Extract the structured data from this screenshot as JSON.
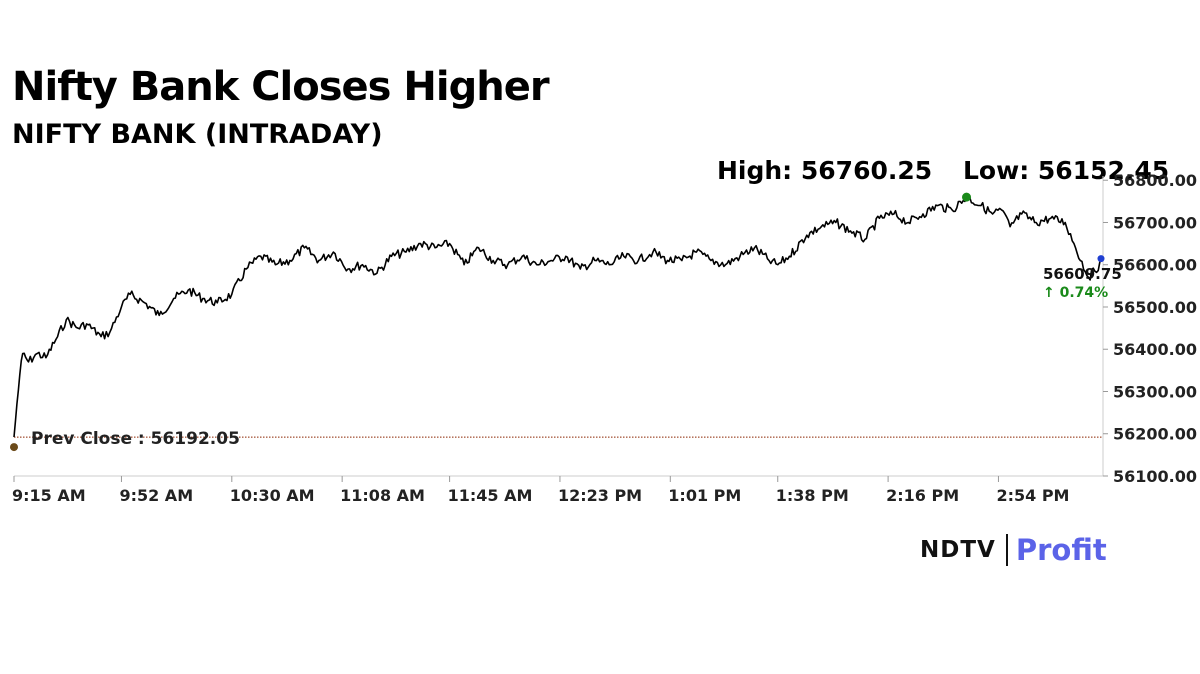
{
  "header": {
    "title": "Nifty Bank Closes Higher",
    "subtitle": "NIFTY BANK (INTRADAY)",
    "high_label": "High: 56760.25",
    "low_label": "Low: 56152.45"
  },
  "brand": {
    "ndtv": "NDTV",
    "profit": "Profit"
  },
  "chart_data": {
    "type": "line",
    "title": "NIFTY BANK (INTRADAY)",
    "xlabel": "",
    "ylabel": "",
    "x_ticks": [
      "9:15 AM",
      "9:52 AM",
      "10:30 AM",
      "11:08 AM",
      "11:45 AM",
      "12:23 PM",
      "1:01 PM",
      "1:38 PM",
      "2:16 PM",
      "2:54 PM"
    ],
    "y_ticks": [
      "56100.00",
      "56200.00",
      "56300.00",
      "56400.00",
      "56500.00",
      "56600.00",
      "56700.00",
      "56800.00"
    ],
    "ylim": [
      56100,
      56810
    ],
    "xlim_minutes": [
      555,
      930
    ],
    "grid": false,
    "prev_close": 56192.05,
    "prev_close_label": "Prev Close : 56192.05",
    "last_value_label": "56609.75",
    "change_label": "↑ 0.74%",
    "colors": {
      "line": "#000000",
      "prev_close_line": "#8b2500",
      "high_marker": "#1a8a1a",
      "start_marker": "#6b4a1a",
      "last_marker": "#1f3fd1",
      "change": "#1a8a1a"
    },
    "series": [
      {
        "x": [
          "9:15 AM",
          "9:16 AM",
          "9:17 AM",
          "9:18 AM",
          "9:20 AM",
          "9:23 AM",
          "9:26 AM",
          "9:30 AM",
          "9:33 AM",
          "9:37 AM",
          "9:40 AM",
          "9:45 AM",
          "9:48 AM",
          "9:52 AM",
          "9:55 AM",
          "10:00 AM",
          "10:05 AM",
          "10:10 AM",
          "10:15 AM",
          "10:20 AM",
          "10:25 AM",
          "10:30 AM",
          "10:35 AM",
          "10:40 AM",
          "10:45 AM",
          "10:50 AM",
          "10:55 AM",
          "11:00 AM",
          "11:05 AM",
          "11:10 AM",
          "11:15 AM",
          "11:20 AM",
          "11:25 AM",
          "11:30 AM",
          "11:35 AM",
          "11:40 AM",
          "11:45 AM",
          "11:50 AM",
          "11:55 AM",
          "12:00 PM",
          "12:05 PM",
          "12:10 PM",
          "12:15 PM",
          "12:20 PM",
          "12:25 PM",
          "12:30 PM",
          "12:35 PM",
          "12:40 PM",
          "12:45 PM",
          "12:50 PM",
          "12:55 PM",
          "1:00 PM",
          "1:05 PM",
          "1:10 PM",
          "1:15 PM",
          "1:20 PM",
          "1:25 PM",
          "1:30 PM",
          "1:35 PM",
          "1:38 PM",
          "1:42 PM",
          "1:48 PM",
          "1:53 PM",
          "1:58 PM",
          "2:03 PM",
          "2:08 PM",
          "2:13 PM",
          "2:18 PM",
          "2:23 PM",
          "2:28 PM",
          "2:33 PM",
          "2:38 PM",
          "2:43 PM",
          "2:48 PM",
          "2:52 PM",
          "2:55 PM",
          "2:58 PM",
          "3:02 PM",
          "3:07 PM",
          "3:12 PM",
          "3:17 PM",
          "3:20 PM",
          "3:25 PM",
          "3:30 PM"
        ],
        "y": [
          56192.05,
          56270,
          56340,
          56390,
          56370,
          56390,
          56380,
          56430,
          56470,
          56450,
          56460,
          56430,
          56440,
          56500,
          56530,
          56510,
          56480,
          56520,
          56540,
          56520,
          56510,
          56530,
          56590,
          56620,
          56600,
          56610,
          56640,
          56610,
          56630,
          56590,
          56600,
          56580,
          56620,
          56630,
          56650,
          56640,
          56650,
          56600,
          56640,
          56610,
          56600,
          56620,
          56600,
          56610,
          56620,
          56590,
          56610,
          56600,
          56620,
          56610,
          56630,
          56610,
          56610,
          56630,
          56610,
          56600,
          56620,
          56640,
          56610,
          56600,
          56620,
          56670,
          56690,
          56700,
          56680,
          56660,
          56710,
          56720,
          56700,
          56720,
          56740,
          56730,
          56760,
          56740,
          56720,
          56730,
          56690,
          56720,
          56700,
          56710,
          56700,
          56650,
          56570,
          56609.75
        ]
      }
    ]
  }
}
